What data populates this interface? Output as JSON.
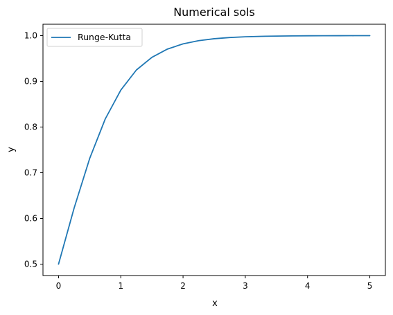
{
  "chart_data": {
    "type": "line",
    "title": "Numerical sols",
    "xlabel": "x",
    "ylabel": "y",
    "xlim": [
      -0.25,
      5.25
    ],
    "ylim": [
      0.475,
      1.025
    ],
    "xticks": [
      0,
      1,
      2,
      3,
      4,
      5
    ],
    "xtick_labels": [
      "0",
      "1",
      "2",
      "3",
      "4",
      "5"
    ],
    "yticks": [
      0.5,
      0.6,
      0.7,
      0.8,
      0.9,
      1.0
    ],
    "ytick_labels": [
      "0.5",
      "0.6",
      "0.7",
      "0.8",
      "0.9",
      "1.0"
    ],
    "grid": false,
    "legend_position": "upper-left",
    "series": [
      {
        "name": "Runge-Kutta",
        "color": "#1f77b4",
        "x": [
          0,
          0.25,
          0.5,
          0.75,
          1.0,
          1.25,
          1.5,
          1.75,
          2.0,
          2.25,
          2.5,
          2.75,
          3.0,
          3.25,
          3.5,
          3.75,
          4.0,
          4.25,
          4.5,
          4.75,
          5.0
        ],
        "y": [
          0.5,
          0.6225,
          0.7311,
          0.8176,
          0.8808,
          0.9248,
          0.9526,
          0.9707,
          0.982,
          0.989,
          0.9933,
          0.9959,
          0.9975,
          0.9985,
          0.9991,
          0.9994,
          0.9997,
          0.9998,
          0.9999,
          0.99995,
          1.0
        ]
      }
    ]
  }
}
